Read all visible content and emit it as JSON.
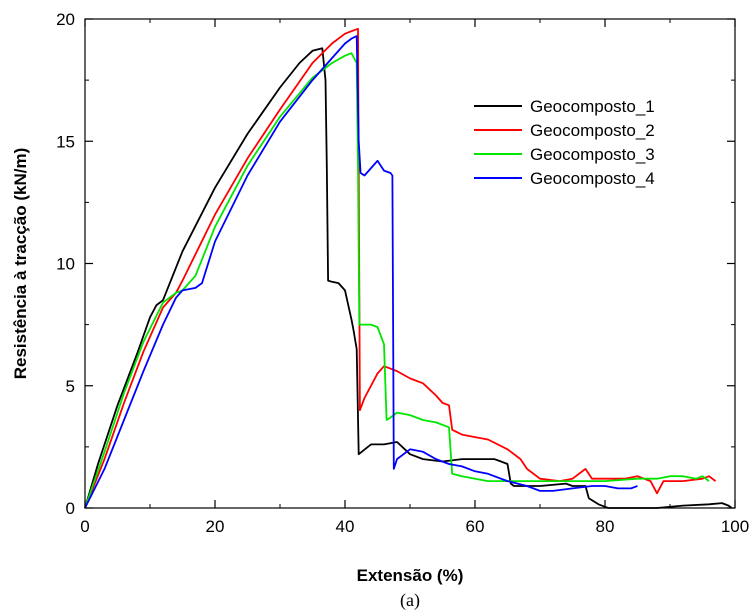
{
  "chart_data": {
    "type": "line",
    "title": "",
    "xlabel": "Extensão (%)",
    "ylabel": "Resistência à tracção (kN/m)",
    "caption": "(a)",
    "xlim": [
      0,
      100
    ],
    "ylim": [
      0,
      20
    ],
    "xticks": [
      0,
      20,
      40,
      60,
      80,
      100
    ],
    "yticks": [
      0,
      5,
      10,
      15,
      20
    ],
    "grid": false,
    "legend_position": "top-right",
    "series": [
      {
        "name": "Geocomposto_1",
        "color": "#000000",
        "points": [
          [
            0,
            0
          ],
          [
            2,
            1.8
          ],
          [
            5,
            4.2
          ],
          [
            8,
            6.3
          ],
          [
            10,
            7.8
          ],
          [
            11,
            8.3
          ],
          [
            12,
            8.5
          ],
          [
            15,
            10.5
          ],
          [
            20,
            13.1
          ],
          [
            25,
            15.3
          ],
          [
            30,
            17.2
          ],
          [
            33,
            18.2
          ],
          [
            35,
            18.7
          ],
          [
            36.5,
            18.8
          ],
          [
            37,
            17.5
          ],
          [
            37.2,
            14
          ],
          [
            37.4,
            9.3
          ],
          [
            38,
            9.25
          ],
          [
            39,
            9.2
          ],
          [
            40,
            8.9
          ],
          [
            41,
            7.7
          ],
          [
            41.3,
            7.3
          ],
          [
            41.8,
            6.5
          ],
          [
            42.1,
            2.2
          ],
          [
            44,
            2.6
          ],
          [
            46,
            2.6
          ],
          [
            48,
            2.7
          ],
          [
            50,
            2.2
          ],
          [
            52,
            2.0
          ],
          [
            55,
            1.9
          ],
          [
            58,
            2.0
          ],
          [
            60,
            2.0
          ],
          [
            62,
            2.0
          ],
          [
            63,
            2.0
          ],
          [
            64,
            1.9
          ],
          [
            65,
            1.8
          ],
          [
            65.5,
            1.0
          ],
          [
            66,
            0.9
          ],
          [
            70,
            0.9
          ],
          [
            74,
            1.0
          ],
          [
            75,
            0.9
          ],
          [
            77,
            0.9
          ],
          [
            77.5,
            0.4
          ],
          [
            79,
            0.15
          ],
          [
            80,
            0.05
          ],
          [
            80.5,
            0
          ],
          [
            88,
            0
          ],
          [
            92,
            0.1
          ],
          [
            96,
            0.15
          ],
          [
            98,
            0.2
          ],
          [
            99,
            0.1
          ],
          [
            99.5,
            0
          ]
        ]
      },
      {
        "name": "Geocomposto_2",
        "color": "#ff0000",
        "points": [
          [
            0,
            0
          ],
          [
            3,
            2.0
          ],
          [
            6,
            4.3
          ],
          [
            9,
            6.4
          ],
          [
            12,
            8.2
          ],
          [
            14,
            8.8
          ],
          [
            15,
            9.3
          ],
          [
            20,
            12.0
          ],
          [
            25,
            14.3
          ],
          [
            30,
            16.3
          ],
          [
            35,
            18.2
          ],
          [
            38,
            19.0
          ],
          [
            40,
            19.4
          ],
          [
            41,
            19.5
          ],
          [
            42,
            19.6
          ],
          [
            42.1,
            14
          ],
          [
            42.3,
            4.0
          ],
          [
            43,
            4.5
          ],
          [
            45,
            5.5
          ],
          [
            46,
            5.8
          ],
          [
            48,
            5.6
          ],
          [
            50,
            5.3
          ],
          [
            52,
            5.1
          ],
          [
            54,
            4.6
          ],
          [
            55,
            4.3
          ],
          [
            56,
            4.2
          ],
          [
            56.5,
            3.2
          ],
          [
            58,
            3.0
          ],
          [
            60,
            2.9
          ],
          [
            62,
            2.8
          ],
          [
            65,
            2.4
          ],
          [
            67,
            2.0
          ],
          [
            68,
            1.6
          ],
          [
            70,
            1.2
          ],
          [
            73,
            1.1
          ],
          [
            75,
            1.2
          ],
          [
            77,
            1.6
          ],
          [
            78,
            1.2
          ],
          [
            80,
            1.2
          ],
          [
            83,
            1.2
          ],
          [
            85,
            1.3
          ],
          [
            87,
            1.1
          ],
          [
            88,
            0.6
          ],
          [
            89,
            1.1
          ],
          [
            92,
            1.1
          ],
          [
            95,
            1.2
          ],
          [
            96,
            1.3
          ],
          [
            97,
            1.1
          ]
        ]
      },
      {
        "name": "Geocomposto_3",
        "color": "#00e600",
        "points": [
          [
            0,
            0
          ],
          [
            3,
            2.3
          ],
          [
            6,
            4.7
          ],
          [
            9,
            6.8
          ],
          [
            12,
            8.4
          ],
          [
            14,
            8.8
          ],
          [
            15,
            8.9
          ],
          [
            17,
            9.5
          ],
          [
            20,
            11.5
          ],
          [
            25,
            14.0
          ],
          [
            30,
            16.0
          ],
          [
            35,
            17.6
          ],
          [
            38,
            18.2
          ],
          [
            40,
            18.5
          ],
          [
            41,
            18.6
          ],
          [
            41.8,
            18.2
          ],
          [
            42,
            14
          ],
          [
            42.2,
            7.5
          ],
          [
            44,
            7.5
          ],
          [
            45,
            7.4
          ],
          [
            46,
            6.7
          ],
          [
            46.4,
            3.6
          ],
          [
            47,
            3.7
          ],
          [
            48,
            3.9
          ],
          [
            50,
            3.8
          ],
          [
            52,
            3.6
          ],
          [
            54,
            3.5
          ],
          [
            56,
            3.3
          ],
          [
            56.5,
            1.4
          ],
          [
            58,
            1.3
          ],
          [
            60,
            1.2
          ],
          [
            62,
            1.1
          ],
          [
            65,
            1.1
          ],
          [
            68,
            1.1
          ],
          [
            70,
            1.1
          ],
          [
            75,
            1.1
          ],
          [
            80,
            1.1
          ],
          [
            85,
            1.2
          ],
          [
            88,
            1.2
          ],
          [
            90,
            1.3
          ],
          [
            92,
            1.3
          ],
          [
            94,
            1.2
          ],
          [
            95,
            1.3
          ],
          [
            96,
            1.1
          ]
        ]
      },
      {
        "name": "Geocomposto_4",
        "color": "#0000ff",
        "points": [
          [
            0,
            0
          ],
          [
            3,
            1.6
          ],
          [
            6,
            3.6
          ],
          [
            9,
            5.6
          ],
          [
            12,
            7.5
          ],
          [
            14,
            8.6
          ],
          [
            15,
            8.9
          ],
          [
            17,
            9.0
          ],
          [
            18,
            9.2
          ],
          [
            20,
            10.9
          ],
          [
            25,
            13.6
          ],
          [
            30,
            15.8
          ],
          [
            35,
            17.5
          ],
          [
            38,
            18.4
          ],
          [
            40,
            19.0
          ],
          [
            41,
            19.2
          ],
          [
            41.8,
            19.3
          ],
          [
            42.1,
            15
          ],
          [
            42.4,
            13.7
          ],
          [
            43,
            13.6
          ],
          [
            44,
            13.9
          ],
          [
            45,
            14.2
          ],
          [
            46,
            13.8
          ],
          [
            47,
            13.7
          ],
          [
            47.3,
            13.6
          ],
          [
            47.5,
            1.6
          ],
          [
            48,
            2.0
          ],
          [
            50,
            2.4
          ],
          [
            52,
            2.3
          ],
          [
            54,
            2.0
          ],
          [
            56,
            1.8
          ],
          [
            58,
            1.7
          ],
          [
            60,
            1.5
          ],
          [
            62,
            1.4
          ],
          [
            65,
            1.1
          ],
          [
            68,
            0.9
          ],
          [
            70,
            0.7
          ],
          [
            72,
            0.7
          ],
          [
            75,
            0.8
          ],
          [
            78,
            0.9
          ],
          [
            80,
            0.9
          ],
          [
            82,
            0.8
          ],
          [
            84,
            0.8
          ],
          [
            85,
            0.9
          ]
        ]
      }
    ]
  }
}
